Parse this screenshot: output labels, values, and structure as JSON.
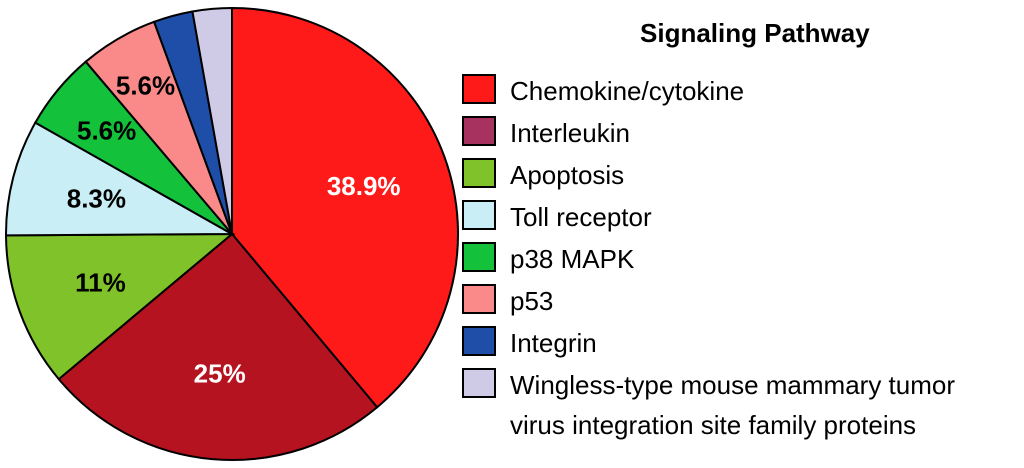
{
  "chart_data": {
    "type": "pie",
    "title": "",
    "legend_title": "Signaling Pathway",
    "legend_position": "right",
    "categories": [
      "Chemokine/cytokine",
      "Interleukin",
      "Apoptosis",
      "Toll receptor",
      "p38 MAPK",
      "p53",
      "Integrin",
      "Wingless-type mouse mammary tumor virus integration site family proteins"
    ],
    "legend_line2": "virus integration site family proteins",
    "legend_line1": "Wingless-type mouse mammary tumor",
    "values": [
      38.9,
      25,
      11,
      8.3,
      5.6,
      5.6,
      2.8,
      2.8
    ],
    "labels": [
      "38.9%",
      "25%",
      "11%",
      "8.3%",
      "5.6%",
      "5.6%",
      "",
      ""
    ],
    "label_colors": [
      "#ffffff",
      "#ffffff",
      "#000000",
      "#000000",
      "#000000",
      "#000000",
      "#000000",
      "#000000"
    ],
    "colors": [
      "#ff1a1a",
      "#b5131f",
      "#7fc22a",
      "#c9eef5",
      "#13c13a",
      "#fa8a8a",
      "#1f4ea8",
      "#cfcbe6"
    ],
    "legend_colors": [
      "#ff1a1a",
      "#a8325f",
      "#7fc22a",
      "#c9eef5",
      "#13c13a",
      "#fa8a8a",
      "#1f4ea8",
      "#cfcbe6"
    ],
    "start_angle_deg": 0,
    "direction": "clockwise"
  }
}
